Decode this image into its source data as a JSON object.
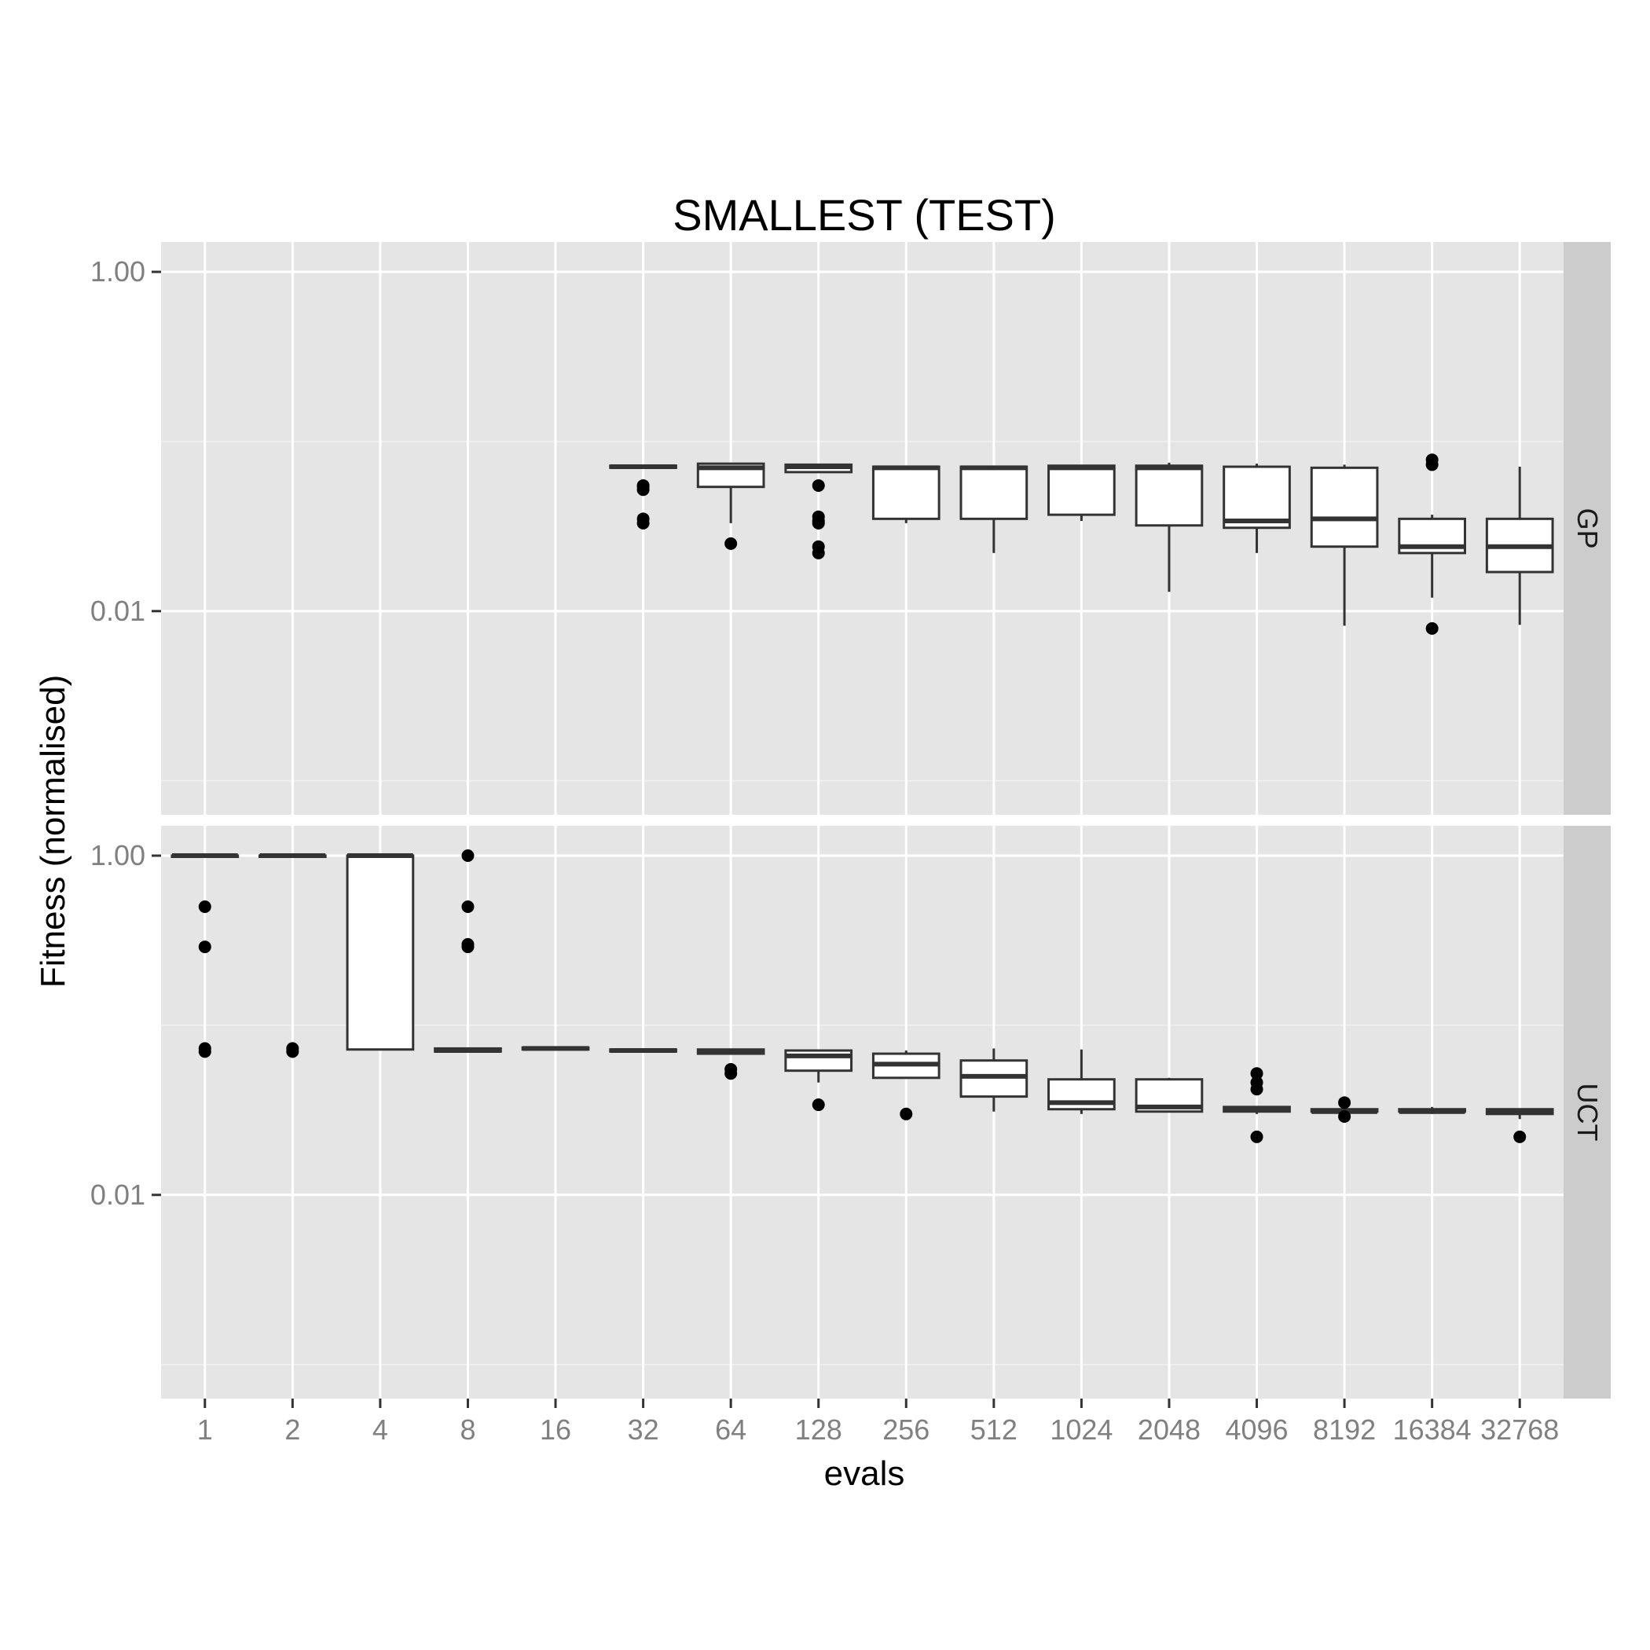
{
  "chart_data": {
    "type": "boxplot",
    "title": "SMALLEST (TEST)",
    "xlabel": "evals",
    "ylabel": "Fitness (normalised)",
    "y_scale": "log10",
    "ylim": [
      0.00063,
      1.5
    ],
    "y_ticks": [
      {
        "value": 1.0,
        "label": "1.00"
      },
      {
        "value": 0.01,
        "label": "0.01"
      }
    ],
    "categories": [
      "1",
      "2",
      "4",
      "8",
      "16",
      "32",
      "64",
      "128",
      "256",
      "512",
      "1024",
      "2048",
      "4096",
      "8192",
      "16384",
      "32768"
    ],
    "panels": [
      {
        "label": "GP",
        "boxes": [
          null,
          null,
          null,
          null,
          null,
          {
            "lower": 0.07,
            "q1": 0.07,
            "median": 0.071,
            "q3": 0.072,
            "upper": 0.072,
            "outliers": [
              0.052,
              0.054,
              0.055,
              0.033,
              0.035
            ]
          },
          {
            "lower": 0.033,
            "q1": 0.054,
            "median": 0.07,
            "q3": 0.074,
            "upper": 0.074,
            "outliers": [
              0.025
            ]
          },
          {
            "lower": 0.066,
            "q1": 0.066,
            "median": 0.071,
            "q3": 0.073,
            "upper": 0.073,
            "outliers": [
              0.055,
              0.034,
              0.036,
              0.033,
              0.024,
              0.022
            ]
          },
          {
            "lower": 0.033,
            "q1": 0.035,
            "median": 0.07,
            "q3": 0.071,
            "upper": 0.071,
            "outliers": []
          },
          {
            "lower": 0.022,
            "q1": 0.035,
            "median": 0.07,
            "q3": 0.071,
            "upper": 0.071,
            "outliers": []
          },
          {
            "lower": 0.034,
            "q1": 0.037,
            "median": 0.07,
            "q3": 0.072,
            "upper": 0.072,
            "outliers": []
          },
          {
            "lower": 0.013,
            "q1": 0.032,
            "median": 0.07,
            "q3": 0.072,
            "upper": 0.075,
            "outliers": []
          },
          {
            "lower": 0.022,
            "q1": 0.031,
            "median": 0.034,
            "q3": 0.071,
            "upper": 0.074,
            "outliers": []
          },
          {
            "lower": 0.0082,
            "q1": 0.024,
            "median": 0.035,
            "q3": 0.07,
            "upper": 0.073,
            "outliers": []
          },
          {
            "lower": 0.012,
            "q1": 0.022,
            "median": 0.024,
            "q3": 0.035,
            "upper": 0.037,
            "outliers": [
              0.078,
              0.073,
              0.0079
            ]
          },
          {
            "lower": 0.0083,
            "q1": 0.017,
            "median": 0.024,
            "q3": 0.035,
            "upper": 0.071,
            "outliers": []
          }
        ]
      },
      {
        "label": "UCT",
        "boxes": [
          {
            "lower": 1.0,
            "q1": 1.0,
            "median": 1.0,
            "q3": 1.0,
            "upper": 1.0,
            "outliers": [
              0.5,
              0.29,
              0.073,
              0.07
            ]
          },
          {
            "lower": 1.0,
            "q1": 1.0,
            "median": 1.0,
            "q3": 1.0,
            "upper": 1.0,
            "outliers": [
              0.073,
              0.07
            ]
          },
          {
            "lower": 0.071,
            "q1": 0.072,
            "median": 1.0,
            "q3": 1.0,
            "upper": 1.0,
            "outliers": []
          },
          {
            "lower": 0.07,
            "q1": 0.07,
            "median": 0.071,
            "q3": 0.073,
            "upper": 0.073,
            "outliers": [
              1.0,
              0.5,
              0.29,
              0.3
            ]
          },
          {
            "lower": 0.072,
            "q1": 0.072,
            "median": 0.073,
            "q3": 0.074,
            "upper": 0.074,
            "outliers": []
          },
          {
            "lower": 0.069,
            "q1": 0.07,
            "median": 0.071,
            "q3": 0.072,
            "upper": 0.072,
            "outliers": []
          },
          {
            "lower": 0.068,
            "q1": 0.068,
            "median": 0.07,
            "q3": 0.072,
            "upper": 0.072,
            "outliers": [
              0.055,
              0.052
            ]
          },
          {
            "lower": 0.046,
            "q1": 0.054,
            "median": 0.066,
            "q3": 0.071,
            "upper": 0.071,
            "outliers": [
              0.034
            ]
          },
          {
            "lower": 0.049,
            "q1": 0.049,
            "median": 0.059,
            "q3": 0.068,
            "upper": 0.071,
            "outliers": [
              0.03
            ]
          },
          {
            "lower": 0.031,
            "q1": 0.038,
            "median": 0.05,
            "q3": 0.062,
            "upper": 0.073,
            "outliers": []
          },
          {
            "lower": 0.03,
            "q1": 0.032,
            "median": 0.035,
            "q3": 0.048,
            "upper": 0.072,
            "outliers": []
          },
          {
            "lower": 0.031,
            "q1": 0.031,
            "median": 0.033,
            "q3": 0.048,
            "upper": 0.049,
            "outliers": []
          },
          {
            "lower": 0.03,
            "q1": 0.031,
            "median": 0.032,
            "q3": 0.033,
            "upper": 0.033,
            "outliers": [
              0.052,
              0.046,
              0.042,
              0.022
            ]
          },
          {
            "lower": 0.029,
            "q1": 0.031,
            "median": 0.031,
            "q3": 0.032,
            "upper": 0.035,
            "outliers": [
              0.035,
              0.029
            ]
          },
          {
            "lower": 0.03,
            "q1": 0.031,
            "median": 0.031,
            "q3": 0.032,
            "upper": 0.033,
            "outliers": []
          },
          {
            "lower": 0.028,
            "q1": 0.03,
            "median": 0.031,
            "q3": 0.032,
            "upper": 0.032,
            "outliers": [
              0.022
            ]
          }
        ]
      }
    ],
    "colors": {
      "panel_bg": "#e5e5e5",
      "strip_bg": "#cccccc",
      "grid_major": "#ffffff",
      "grid_minor": "#f2f2f2",
      "box_fill": "#ffffff",
      "box_stroke": "#333333",
      "outlier": "#000000"
    }
  }
}
